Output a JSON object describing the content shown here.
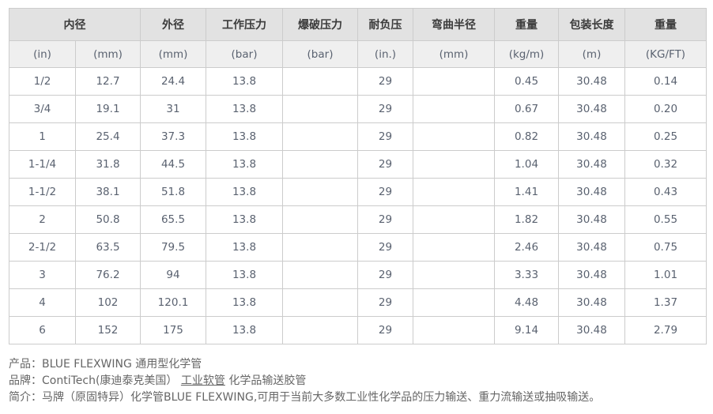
{
  "table": {
    "header_groups": [
      {
        "label": "内径",
        "colspan": 2
      },
      {
        "label": "外径",
        "colspan": 1
      },
      {
        "label": "工作压力",
        "colspan": 1
      },
      {
        "label": "爆破压力",
        "colspan": 1
      },
      {
        "label": "耐负压",
        "colspan": 1
      },
      {
        "label": "弯曲半径",
        "colspan": 1
      },
      {
        "label": "重量",
        "colspan": 1
      },
      {
        "label": "包装长度",
        "colspan": 1
      },
      {
        "label": "重量",
        "colspan": 1
      }
    ],
    "units": [
      "(in)",
      "(mm)",
      "(mm)",
      "(bar)",
      "(bar)",
      "(in.)",
      "(mm)",
      "(kg/m)",
      "(m)",
      "(KG/FT)"
    ],
    "rows": [
      [
        "1/2",
        "12.7",
        "24.4",
        "13.8",
        "",
        "29",
        "",
        "0.45",
        "30.48",
        "0.14"
      ],
      [
        "3/4",
        "19.1",
        "31",
        "13.8",
        "",
        "29",
        "",
        "0.67",
        "30.48",
        "0.20"
      ],
      [
        "1",
        "25.4",
        "37.3",
        "13.8",
        "",
        "29",
        "",
        "0.82",
        "30.48",
        "0.25"
      ],
      [
        "1-1/4",
        "31.8",
        "44.5",
        "13.8",
        "",
        "29",
        "",
        "1.04",
        "30.48",
        "0.32"
      ],
      [
        "1-1/2",
        "38.1",
        "51.8",
        "13.8",
        "",
        "29",
        "",
        "1.41",
        "30.48",
        "0.43"
      ],
      [
        "2",
        "50.8",
        "65.5",
        "13.8",
        "",
        "29",
        "",
        "1.82",
        "30.48",
        "0.55"
      ],
      [
        "2-1/2",
        "63.5",
        "79.5",
        "13.8",
        "",
        "29",
        "",
        "2.46",
        "30.48",
        "0.75"
      ],
      [
        "3",
        "76.2",
        "94",
        "13.8",
        "",
        "29",
        "",
        "3.33",
        "30.48",
        "1.01"
      ],
      [
        "4",
        "102",
        "120.1",
        "13.8",
        "",
        "29",
        "",
        "4.48",
        "30.48",
        "1.37"
      ],
      [
        "6",
        "152",
        "175",
        "13.8",
        "",
        "29",
        "",
        "9.14",
        "30.48",
        "2.79"
      ]
    ]
  },
  "footer": {
    "product_label": "产品：",
    "product_value": "BLUE FLEXWING 通用型化学管",
    "brand_label": "品牌：",
    "brand_value": "ContiTech(康迪泰克美国）",
    "brand_link": "工业软管",
    "brand_tail": "化学品输送胶管",
    "intro_label": "简介：",
    "intro_value": "马牌（原固特异）化学管BLUE FLEXWING,可用于当前大多数工业性化学品的压力输送、重力流输送或抽吸输送。"
  },
  "colors": {
    "header_bg": "#e2e2e2",
    "unit_row_bg": "#efefef",
    "border": "#cccccc",
    "outer_border": "#b0b0b0",
    "cell_text": "#5a6270",
    "footer_text": "#666666"
  }
}
